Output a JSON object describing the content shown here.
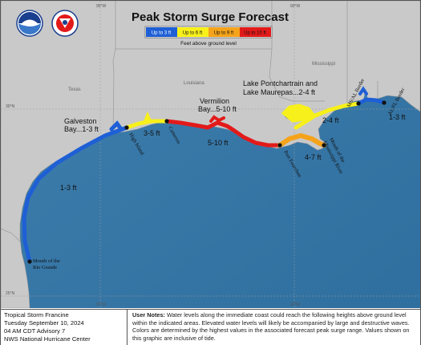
{
  "title": "Peak Storm Surge Forecast",
  "legend": {
    "items": [
      {
        "label": "Up to 3 ft",
        "color": "#1e5fd6"
      },
      {
        "label": "Up to 6 ft",
        "color": "#f7f01a"
      },
      {
        "label": "Up to 9 ft",
        "color": "#f5a31a"
      },
      {
        "label": "Up to 10 ft",
        "color": "#e31a1a"
      }
    ],
    "caption": "Feet above ground level"
  },
  "logos": [
    "noaa-logo",
    "nws-logo"
  ],
  "gridlines": {
    "lat_30": "30°N",
    "lat_25": "25°N",
    "lon_95": "95°W",
    "lon_90": "90°W"
  },
  "states": {
    "texas": "Texas",
    "louisiana": "Louisiana",
    "mississippi": "Mississippi"
  },
  "surge_labels": {
    "galveston_line1": "Galveston",
    "galveston_line2": "Bay...1-3 ft",
    "vermilion_line1": "Vermilion",
    "vermilion_line2": "Bay...5-10 ft",
    "pontchartrain_line1": "Lake Pontchartrain and",
    "pontchartrain_line2": "Lake Maurepas...2-4 ft",
    "tx_coast": "1-3 ft",
    "high_island_cameron": "3-5 ft",
    "cameron_fourchon": "5-10 ft",
    "ms_coast": "2-4 ft",
    "mouth_east": "4-7 ft",
    "al_fl": "1-3 ft"
  },
  "places": {
    "mouth_rio_grande_line1": "Mouth of the",
    "mouth_rio_grande_line2": "Rio Grande",
    "high_island": "High Island",
    "cameron": "Cameron",
    "port_fourchon": "Port Fourchon",
    "mouth_mississippi_line1": "Mouth of the",
    "mouth_mississippi_line2": "Mississippi River",
    "ms_al_border": "MS/AL Border",
    "al_fl_border": "AL/FL Border"
  },
  "advisory": {
    "storm": "Tropical Storm Francine",
    "date": "Tuesday September 10, 2024",
    "time": "04 AM CDT Advisory 7",
    "office": "NWS National Hurricane Center"
  },
  "notes": {
    "heading": "User Notes:",
    "text": "Water levels along the immediate coast could reach the following heights above ground level within the indicated areas. Elevated water levels will likely be accompanied by large and destructive waves. Colors are determined by the highest values in the associated forecast peak surge range. Values shown on this graphic are inclusive of tide."
  }
}
